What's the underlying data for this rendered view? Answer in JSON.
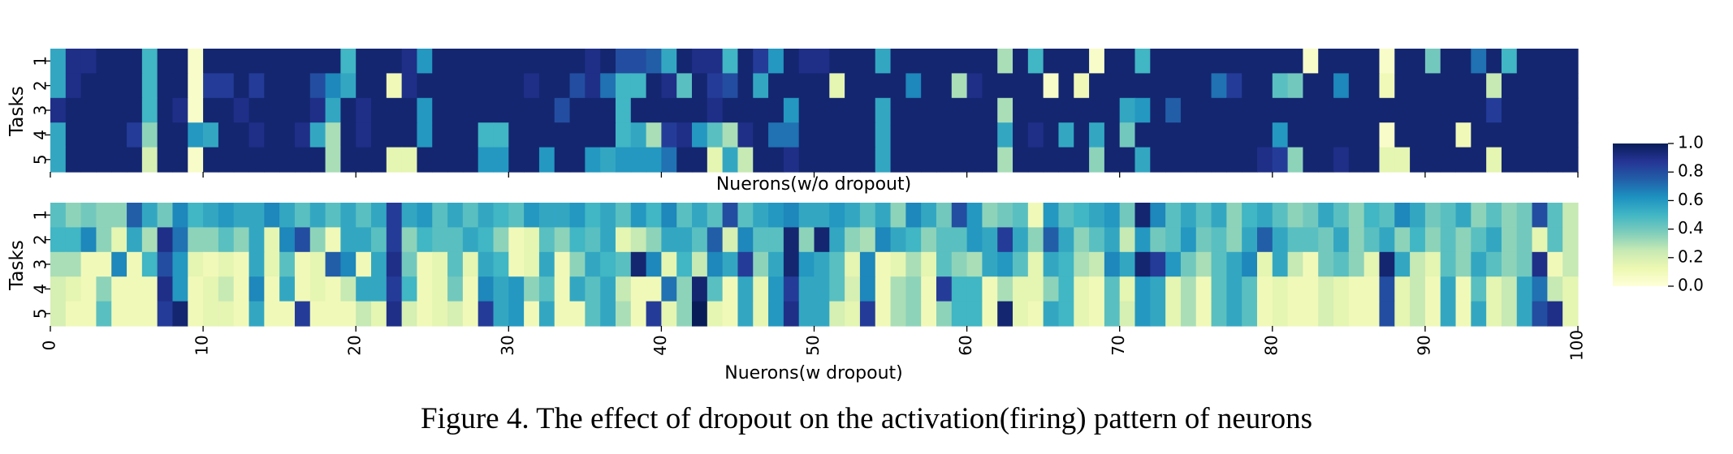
{
  "figure": {
    "caption": "Figure 4. The effect of dropout on the activation(firing) pattern of neurons"
  },
  "chart_data": [
    {
      "type": "heatmap",
      "title": "",
      "xlabel": "Nuerons(w/o dropout)",
      "ylabel": "Tasks",
      "y_ticks": [
        "1",
        "2",
        "3",
        "4",
        "5"
      ],
      "x_range": [
        0,
        100
      ],
      "colormap": "YlGnBu",
      "vmin": 0.0,
      "vmax": 1.0,
      "data": [
        [
          0.55,
          0.9,
          0.9,
          0.95,
          0.95,
          0.95,
          0.5,
          0.95,
          0.95,
          0.05,
          0.95,
          0.95,
          0.95,
          0.95,
          0.95,
          0.95,
          0.95,
          0.95,
          0.95,
          0.5,
          0.95,
          0.95,
          0.95,
          0.9,
          0.6,
          0.95,
          0.95,
          0.95,
          0.95,
          0.95,
          0.95,
          0.95,
          0.95,
          0.95,
          0.95,
          0.9,
          0.95,
          0.8,
          0.8,
          0.75,
          0.55,
          0.95,
          0.9,
          0.9,
          0.5,
          0.95,
          0.85,
          0.6,
          0.95,
          0.9,
          0.9,
          0.95,
          0.95,
          0.95,
          0.55,
          0.95,
          0.95,
          0.95,
          0.95,
          0.95,
          0.95,
          0.95,
          0.3,
          0.95,
          0.5,
          0.95,
          0.95,
          0.95,
          0.05,
          0.95,
          0.95,
          0.5,
          0.95,
          0.95,
          0.95,
          0.95,
          0.95,
          0.95,
          0.95,
          0.95,
          0.95,
          0.95,
          0.05,
          0.95,
          0.95,
          0.95,
          0.95,
          0.05,
          0.95,
          0.95,
          0.4,
          0.95,
          0.95,
          0.7,
          0.95,
          0.5,
          0.95,
          0.95,
          0.95,
          0.95
        ],
        [
          0.55,
          0.9,
          0.95,
          0.95,
          0.95,
          0.95,
          0.5,
          0.95,
          0.95,
          0.05,
          0.85,
          0.85,
          0.95,
          0.85,
          0.95,
          0.95,
          0.95,
          0.8,
          0.65,
          0.55,
          0.95,
          0.95,
          0.1,
          0.9,
          0.95,
          0.95,
          0.95,
          0.95,
          0.95,
          0.95,
          0.95,
          0.9,
          0.95,
          0.95,
          0.8,
          0.9,
          0.7,
          0.5,
          0.5,
          0.95,
          0.9,
          0.45,
          0.95,
          0.85,
          0.8,
          0.95,
          0.55,
          0.95,
          0.95,
          0.95,
          0.95,
          0.15,
          0.95,
          0.95,
          0.95,
          0.95,
          0.65,
          0.95,
          0.95,
          0.3,
          0.9,
          0.95,
          0.95,
          0.95,
          0.95,
          0.05,
          0.95,
          0.1,
          0.95,
          0.95,
          0.95,
          0.95,
          0.95,
          0.95,
          0.95,
          0.95,
          0.7,
          0.85,
          0.95,
          0.95,
          0.45,
          0.4,
          0.95,
          0.95,
          0.65,
          0.95,
          0.95,
          0.1,
          0.95,
          0.95,
          0.95,
          0.95,
          0.95,
          0.95,
          0.25,
          0.95,
          0.95,
          0.95,
          0.95,
          0.95
        ],
        [
          0.9,
          0.95,
          0.95,
          0.95,
          0.95,
          0.95,
          0.5,
          0.95,
          0.9,
          0.05,
          0.95,
          0.95,
          0.9,
          0.95,
          0.95,
          0.95,
          0.95,
          0.9,
          0.55,
          0.95,
          0.9,
          0.95,
          0.95,
          0.95,
          0.6,
          0.95,
          0.95,
          0.95,
          0.95,
          0.95,
          0.95,
          0.95,
          0.95,
          0.8,
          0.95,
          0.95,
          0.95,
          0.5,
          0.95,
          0.95,
          0.95,
          0.95,
          0.95,
          0.9,
          0.95,
          0.95,
          0.95,
          0.95,
          0.6,
          0.95,
          0.95,
          0.95,
          0.95,
          0.95,
          0.55,
          0.95,
          0.95,
          0.95,
          0.95,
          0.95,
          0.95,
          0.95,
          0.3,
          0.95,
          0.95,
          0.95,
          0.95,
          0.95,
          0.95,
          0.95,
          0.55,
          0.6,
          0.95,
          0.75,
          0.95,
          0.95,
          0.95,
          0.95,
          0.95,
          0.95,
          0.95,
          0.95,
          0.95,
          0.95,
          0.95,
          0.95,
          0.95,
          0.95,
          0.95,
          0.95,
          0.95,
          0.95,
          0.95,
          0.95,
          0.85,
          0.95,
          0.95,
          0.95,
          0.95,
          0.95
        ],
        [
          0.55,
          0.95,
          0.95,
          0.95,
          0.95,
          0.85,
          0.35,
          0.95,
          0.95,
          0.6,
          0.55,
          0.95,
          0.95,
          0.9,
          0.95,
          0.95,
          0.9,
          0.55,
          0.3,
          0.95,
          0.9,
          0.95,
          0.95,
          0.95,
          0.6,
          0.95,
          0.95,
          0.95,
          0.5,
          0.5,
          0.95,
          0.95,
          0.95,
          0.95,
          0.95,
          0.95,
          0.95,
          0.5,
          0.55,
          0.3,
          0.85,
          0.9,
          0.6,
          0.45,
          0.3,
          0.9,
          0.95,
          0.7,
          0.7,
          0.95,
          0.95,
          0.95,
          0.95,
          0.95,
          0.55,
          0.95,
          0.95,
          0.95,
          0.95,
          0.95,
          0.95,
          0.95,
          0.55,
          0.95,
          0.9,
          0.95,
          0.55,
          0.95,
          0.55,
          0.95,
          0.4,
          0.95,
          0.95,
          0.95,
          0.95,
          0.95,
          0.95,
          0.95,
          0.95,
          0.95,
          0.6,
          0.95,
          0.95,
          0.95,
          0.95,
          0.95,
          0.95,
          0.05,
          0.95,
          0.95,
          0.95,
          0.95,
          0.1,
          0.95,
          0.95,
          0.95,
          0.95,
          0.95,
          0.95,
          0.95
        ],
        [
          0.55,
          0.95,
          0.95,
          0.95,
          0.95,
          0.95,
          0.2,
          0.95,
          0.95,
          0.05,
          0.95,
          0.95,
          0.95,
          0.95,
          0.95,
          0.95,
          0.95,
          0.95,
          0.3,
          0.95,
          0.95,
          0.95,
          0.15,
          0.15,
          0.95,
          0.95,
          0.95,
          0.95,
          0.6,
          0.6,
          0.95,
          0.95,
          0.6,
          0.95,
          0.95,
          0.6,
          0.55,
          0.6,
          0.6,
          0.6,
          0.7,
          0.95,
          0.95,
          0.15,
          0.55,
          0.25,
          0.95,
          0.95,
          0.9,
          0.95,
          0.95,
          0.95,
          0.95,
          0.95,
          0.55,
          0.95,
          0.95,
          0.95,
          0.95,
          0.95,
          0.95,
          0.95,
          0.3,
          0.95,
          0.95,
          0.95,
          0.95,
          0.95,
          0.35,
          0.95,
          0.95,
          0.55,
          0.95,
          0.95,
          0.95,
          0.95,
          0.95,
          0.95,
          0.95,
          0.9,
          0.85,
          0.35,
          0.95,
          0.95,
          0.9,
          0.95,
          0.95,
          0.15,
          0.15,
          0.95,
          0.95,
          0.95,
          0.95,
          0.95,
          0.15,
          0.95,
          0.95,
          0.95,
          0.95,
          0.95
        ]
      ]
    },
    {
      "type": "heatmap",
      "title": "",
      "xlabel": "Nuerons(w dropout)",
      "ylabel": "Tasks",
      "y_ticks": [
        "1",
        "2",
        "3",
        "4",
        "5"
      ],
      "x_ticks": [
        "0",
        "10",
        "20",
        "30",
        "40",
        "50",
        "60",
        "70",
        "80",
        "90",
        "100"
      ],
      "x_range": [
        0,
        100
      ],
      "colormap": "YlGnBu",
      "vmin": 0.0,
      "vmax": 1.0,
      "data": [
        [
          0.45,
          0.35,
          0.4,
          0.35,
          0.35,
          0.75,
          0.55,
          0.4,
          0.65,
          0.5,
          0.55,
          0.6,
          0.55,
          0.55,
          0.65,
          0.55,
          0.45,
          0.55,
          0.45,
          0.55,
          0.45,
          0.55,
          0.85,
          0.55,
          0.6,
          0.45,
          0.55,
          0.45,
          0.55,
          0.5,
          0.45,
          0.6,
          0.55,
          0.55,
          0.6,
          0.5,
          0.55,
          0.45,
          0.6,
          0.5,
          0.65,
          0.45,
          0.55,
          0.45,
          0.8,
          0.45,
          0.55,
          0.6,
          0.65,
          0.55,
          0.55,
          0.6,
          0.55,
          0.45,
          0.55,
          0.35,
          0.65,
          0.55,
          0.4,
          0.8,
          0.6,
          0.35,
          0.4,
          0.45,
          0.1,
          0.6,
          0.45,
          0.5,
          0.55,
          0.6,
          0.4,
          0.95,
          0.65,
          0.45,
          0.55,
          0.45,
          0.55,
          0.35,
          0.5,
          0.55,
          0.45,
          0.35,
          0.4,
          0.55,
          0.45,
          0.35,
          0.5,
          0.45,
          0.65,
          0.55,
          0.4,
          0.45,
          0.55,
          0.35,
          0.45,
          0.35,
          0.4,
          0.8,
          0.45,
          0.25
        ],
        [
          0.5,
          0.5,
          0.65,
          0.35,
          0.15,
          0.55,
          0.3,
          0.9,
          0.7,
          0.35,
          0.35,
          0.45,
          0.35,
          0.55,
          0.15,
          0.65,
          0.8,
          0.35,
          0.1,
          0.55,
          0.55,
          0.45,
          0.85,
          0.35,
          0.5,
          0.45,
          0.45,
          0.55,
          0.5,
          0.35,
          0.1,
          0.15,
          0.45,
          0.35,
          0.5,
          0.45,
          0.55,
          0.15,
          0.25,
          0.35,
          0.55,
          0.55,
          0.45,
          0.75,
          0.2,
          0.65,
          0.45,
          0.45,
          0.95,
          0.35,
          0.95,
          0.55,
          0.35,
          0.3,
          0.65,
          0.55,
          0.5,
          0.35,
          0.45,
          0.45,
          0.6,
          0.55,
          0.85,
          0.55,
          0.35,
          0.75,
          0.55,
          0.35,
          0.45,
          0.55,
          0.25,
          0.6,
          0.4,
          0.45,
          0.6,
          0.4,
          0.45,
          0.35,
          0.55,
          0.75,
          0.55,
          0.45,
          0.45,
          0.4,
          0.55,
          0.35,
          0.45,
          0.55,
          0.35,
          0.5,
          0.35,
          0.45,
          0.35,
          0.45,
          0.55,
          0.35,
          0.4,
          0.15,
          0.45,
          0.25
        ],
        [
          0.3,
          0.3,
          0.1,
          0.1,
          0.65,
          0.1,
          0.5,
          0.8,
          0.6,
          0.15,
          0.1,
          0.15,
          0.1,
          0.55,
          0.15,
          0.45,
          0.1,
          0.15,
          0.75,
          0.65,
          0.1,
          0.55,
          0.9,
          0.4,
          0.1,
          0.15,
          0.45,
          0.15,
          0.55,
          0.5,
          0.1,
          0.15,
          0.55,
          0.1,
          0.35,
          0.55,
          0.5,
          0.45,
          0.95,
          0.65,
          0.15,
          0.5,
          0.25,
          0.65,
          0.55,
          0.85,
          0.35,
          0.55,
          0.95,
          0.6,
          0.55,
          0.45,
          0.15,
          0.65,
          0.1,
          0.15,
          0.3,
          0.15,
          0.45,
          0.35,
          0.3,
          0.55,
          0.6,
          0.45,
          0.15,
          0.55,
          0.5,
          0.3,
          0.25,
          0.65,
          0.55,
          0.95,
          0.85,
          0.6,
          0.4,
          0.3,
          0.45,
          0.55,
          0.65,
          0.15,
          0.55,
          0.25,
          0.1,
          0.4,
          0.45,
          0.35,
          0.15,
          0.95,
          0.55,
          0.25,
          0.15,
          0.45,
          0.35,
          0.55,
          0.45,
          0.35,
          0.4,
          0.9,
          0.1,
          0.25
        ],
        [
          0.2,
          0.15,
          0.1,
          0.35,
          0.1,
          0.1,
          0.1,
          0.9,
          0.6,
          0.1,
          0.15,
          0.25,
          0.1,
          0.65,
          0.1,
          0.55,
          0.1,
          0.15,
          0.1,
          0.25,
          0.55,
          0.55,
          0.85,
          0.5,
          0.1,
          0.15,
          0.4,
          0.1,
          0.65,
          0.55,
          0.6,
          0.35,
          0.45,
          0.1,
          0.55,
          0.45,
          0.55,
          0.25,
          0.1,
          0.1,
          0.7,
          0.35,
          0.95,
          0.45,
          0.1,
          0.55,
          0.15,
          0.6,
          0.85,
          0.55,
          0.55,
          0.45,
          0.2,
          0.65,
          0.1,
          0.3,
          0.35,
          0.1,
          0.85,
          0.5,
          0.5,
          0.1,
          0.3,
          0.15,
          0.15,
          0.35,
          0.5,
          0.15,
          0.1,
          0.45,
          0.15,
          0.6,
          0.55,
          0.15,
          0.3,
          0.1,
          0.45,
          0.55,
          0.45,
          0.1,
          0.15,
          0.1,
          0.1,
          0.2,
          0.15,
          0.1,
          0.1,
          0.8,
          0.15,
          0.25,
          0.1,
          0.55,
          0.1,
          0.45,
          0.15,
          0.25,
          0.55,
          0.7,
          0.25,
          0.15
        ],
        [
          0.2,
          0.1,
          0.1,
          0.45,
          0.1,
          0.1,
          0.1,
          0.85,
          0.95,
          0.1,
          0.15,
          0.15,
          0.1,
          0.55,
          0.1,
          0.1,
          0.85,
          0.1,
          0.1,
          0.1,
          0.25,
          0.15,
          0.9,
          0.2,
          0.1,
          0.15,
          0.2,
          0.1,
          0.85,
          0.55,
          0.6,
          0.1,
          0.55,
          0.1,
          0.1,
          0.45,
          0.55,
          0.3,
          0.1,
          0.85,
          0.15,
          0.35,
          1.0,
          0.15,
          0.1,
          0.55,
          0.15,
          0.6,
          0.9,
          0.55,
          0.55,
          0.2,
          0.15,
          0.85,
          0.1,
          0.3,
          0.35,
          0.1,
          0.35,
          0.5,
          0.5,
          0.1,
          0.95,
          0.15,
          0.1,
          0.55,
          0.5,
          0.15,
          0.1,
          0.45,
          0.2,
          0.6,
          0.55,
          0.15,
          0.3,
          0.1,
          0.45,
          0.55,
          0.45,
          0.1,
          0.15,
          0.1,
          0.1,
          0.2,
          0.15,
          0.1,
          0.1,
          0.8,
          0.15,
          0.25,
          0.1,
          0.55,
          0.1,
          0.55,
          0.15,
          0.25,
          0.55,
          0.8,
          0.9,
          0.15
        ]
      ]
    },
    {
      "type": "colorbar",
      "colormap": "YlGnBu",
      "ticks": [
        "1.0",
        "0.8",
        "0.6",
        "0.4",
        "0.2",
        "0.0"
      ]
    }
  ]
}
